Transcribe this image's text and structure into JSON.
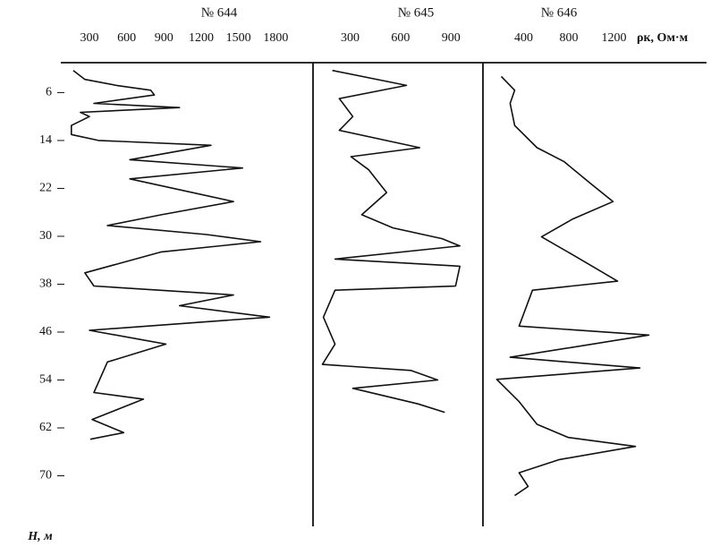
{
  "unit_label": "ρк, Ом·м",
  "chart_data": [
    {
      "type": "line",
      "title": "№ 644",
      "y_label": "H, м",
      "xlim": [
        70,
        2100
      ],
      "xticks": [
        300,
        600,
        900,
        1200,
        1500,
        1800
      ],
      "ylim": [
        1,
        78
      ],
      "yticks": [
        6,
        14,
        22,
        30,
        38,
        46,
        54,
        62,
        70
      ],
      "x": [
        170,
        264,
        518,
        794,
        823,
        336,
        1025,
        228,
        300,
        155,
        155,
        373,
        1279,
        626,
        1533,
        626,
        1460,
        880,
        445,
        1243,
        1678,
        880,
        264,
        336,
        1460,
        1025,
        1750,
        300,
        916,
        445,
        336,
        735,
        322,
        576,
        307
      ],
      "y": [
        2.3,
        3.8,
        4.8,
        5.6,
        6.4,
        7.8,
        8.5,
        9.3,
        10,
        11.5,
        13,
        14,
        14.8,
        17.2,
        18.6,
        20.4,
        24.2,
        26.4,
        28.2,
        29.7,
        30.9,
        32.6,
        36.1,
        38.3,
        39.8,
        41.6,
        43.5,
        45.7,
        48,
        51,
        56.1,
        57.2,
        60.6,
        62.8,
        63.9
      ]
    },
    {
      "type": "line",
      "title": "№ 645",
      "xlim": [
        90,
        1090
      ],
      "xticks": [
        300,
        600,
        900
      ],
      "ylim": [
        1,
        78
      ],
      "x": [
        194,
        635,
        236,
        316,
        236,
        714,
        305,
        411,
        517,
        369,
        555,
        847,
        953,
        210,
        953,
        927,
        210,
        141,
        210,
        135,
        661,
        821,
        316,
        704,
        863
      ],
      "y": [
        2.3,
        4.8,
        7,
        10,
        12.3,
        15.2,
        16.7,
        18.9,
        22.7,
        26.4,
        28.6,
        30.4,
        31.6,
        33.8,
        35,
        38.3,
        39,
        43.5,
        48,
        51.4,
        52.4,
        54,
        55.4,
        58,
        59.4
      ]
    },
    {
      "type": "line",
      "title": "№ 646",
      "xlim": [
        40,
        2020
      ],
      "xticks": [
        400,
        800,
        1200
      ],
      "ylim": [
        1,
        78
      ],
      "x": [
        202,
        321,
        281,
        321,
        519,
        757,
        994,
        1192,
        836,
        559,
        836,
        1232,
        479,
        360,
        1509,
        281,
        1430,
        162,
        360,
        519,
        796,
        1390,
        717,
        360,
        440,
        321
      ],
      "y": [
        3.3,
        5.6,
        7.8,
        11.5,
        15.2,
        17.5,
        21.2,
        24.2,
        27.1,
        30.1,
        33.1,
        37.5,
        39,
        45,
        46.5,
        50.2,
        52,
        53.9,
        57.6,
        61.4,
        63.6,
        65.1,
        67.3,
        69.5,
        71.8,
        73.3
      ]
    }
  ]
}
